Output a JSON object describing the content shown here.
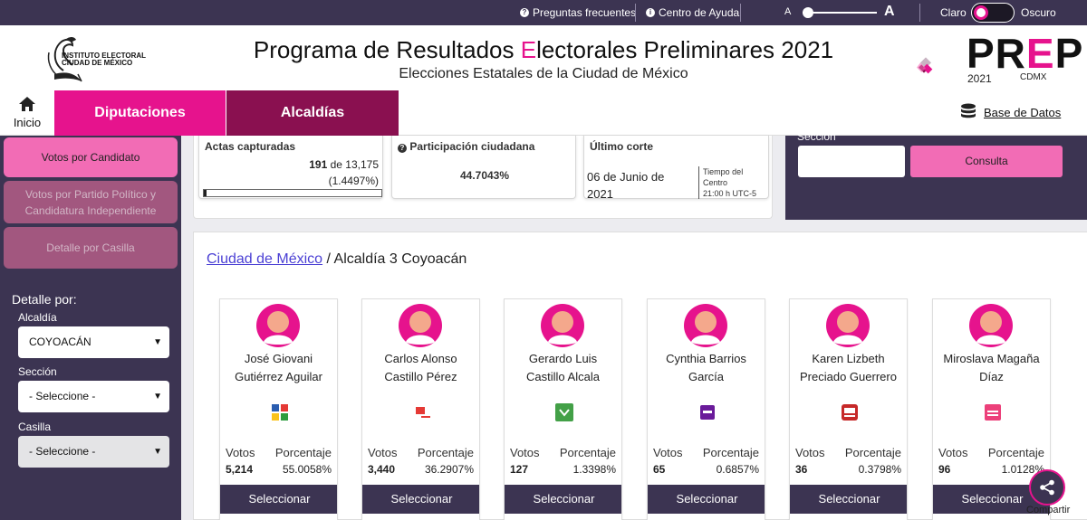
{
  "topbar": {
    "faq_label": "Preguntas frecuentes",
    "help_label": "Centro de Ayuda",
    "font_small": "A",
    "font_large": "A",
    "theme_light": "Claro",
    "theme_dark": "Oscuro"
  },
  "header": {
    "institute_line1": "INSTITUTO ELECTORAL",
    "institute_line2": "CIUDAD DE MÉXICO",
    "title_before": "Programa de Resultados ",
    "title_highlight": "E",
    "title_after": "lectorales Preliminares 2021",
    "subtitle": "Elecciones Estatales de la Ciudad de México",
    "prep_pre": "PR",
    "prep_e": "E",
    "prep_post": "P",
    "prep_year": "2021",
    "prep_region": "CDMX"
  },
  "nav": {
    "home_label": "Inicio",
    "tab_diputaciones": "Diputaciones",
    "tab_alcaldias": "Alcaldías",
    "database_label": "Base de Datos"
  },
  "sidebar": {
    "btn_candidato": "Votos por Candidato",
    "btn_partido": "Votos por Partido Político y Candidatura Independiente",
    "btn_casilla": "Detalle por Casilla",
    "detalle_label": "Detalle por:",
    "alcaldia_label": "Alcaldía",
    "alcaldia_value": "COYOACÁN",
    "seccion_label": "Sección",
    "seccion_value": "- Seleccione -",
    "casilla_label": "Casilla",
    "casilla_value": "- Seleccione -"
  },
  "stats": {
    "actas_title": "Actas capturadas",
    "actas_count": "191",
    "actas_of": " de 13,175",
    "actas_pct": "(1.4497%)",
    "actas_progress": 0.014497,
    "participacion_title": "Participación ciudadana",
    "participacion_value": "44.7043%",
    "corte_title": "Último corte",
    "corte_date_line1": "06 de Junio de",
    "corte_date_line2": "2021",
    "corte_tz_line1": "Tiempo del",
    "corte_tz_line2": "Centro",
    "corte_tz_line3": "21:00 h UTC-5"
  },
  "consulta": {
    "seccion_label": "Sección",
    "button_label": "Consulta"
  },
  "results": {
    "crumb_link": "Ciudad de México",
    "crumb_rest": " / Alcaldía 3 Coyoacán",
    "votes_label": "Votos",
    "pct_label": "Porcentaje",
    "select_label": "Seleccionar",
    "candidates": [
      {
        "name_line1": "José Giovani",
        "name_line2": "Gutiérrez Aguilar",
        "votes": "5,214",
        "pct": "55.0058%"
      },
      {
        "name_line1": "Carlos Alonso",
        "name_line2": "Castillo Pérez",
        "votes": "3,440",
        "pct": "36.2907%"
      },
      {
        "name_line1": "Gerardo Luis",
        "name_line2": "Castillo Alcala",
        "votes": "127",
        "pct": "1.3398%"
      },
      {
        "name_line1": "Cynthia Barrios",
        "name_line2": "García",
        "votes": "65",
        "pct": "0.6857%"
      },
      {
        "name_line1": "Karen Lizbeth",
        "name_line2": "Preciado Guerrero",
        "votes": "36",
        "pct": "0.3798%"
      },
      {
        "name_line1": "Miroslava Magaña",
        "name_line2": "Díaz",
        "votes": "96",
        "pct": "1.0128%"
      }
    ]
  },
  "share": {
    "label": "Compartir"
  },
  "colors": {
    "primary": "#3c3452",
    "accent": "#e6138d",
    "accent_light": "#f26cb5",
    "accent_dark": "#8a1050"
  }
}
